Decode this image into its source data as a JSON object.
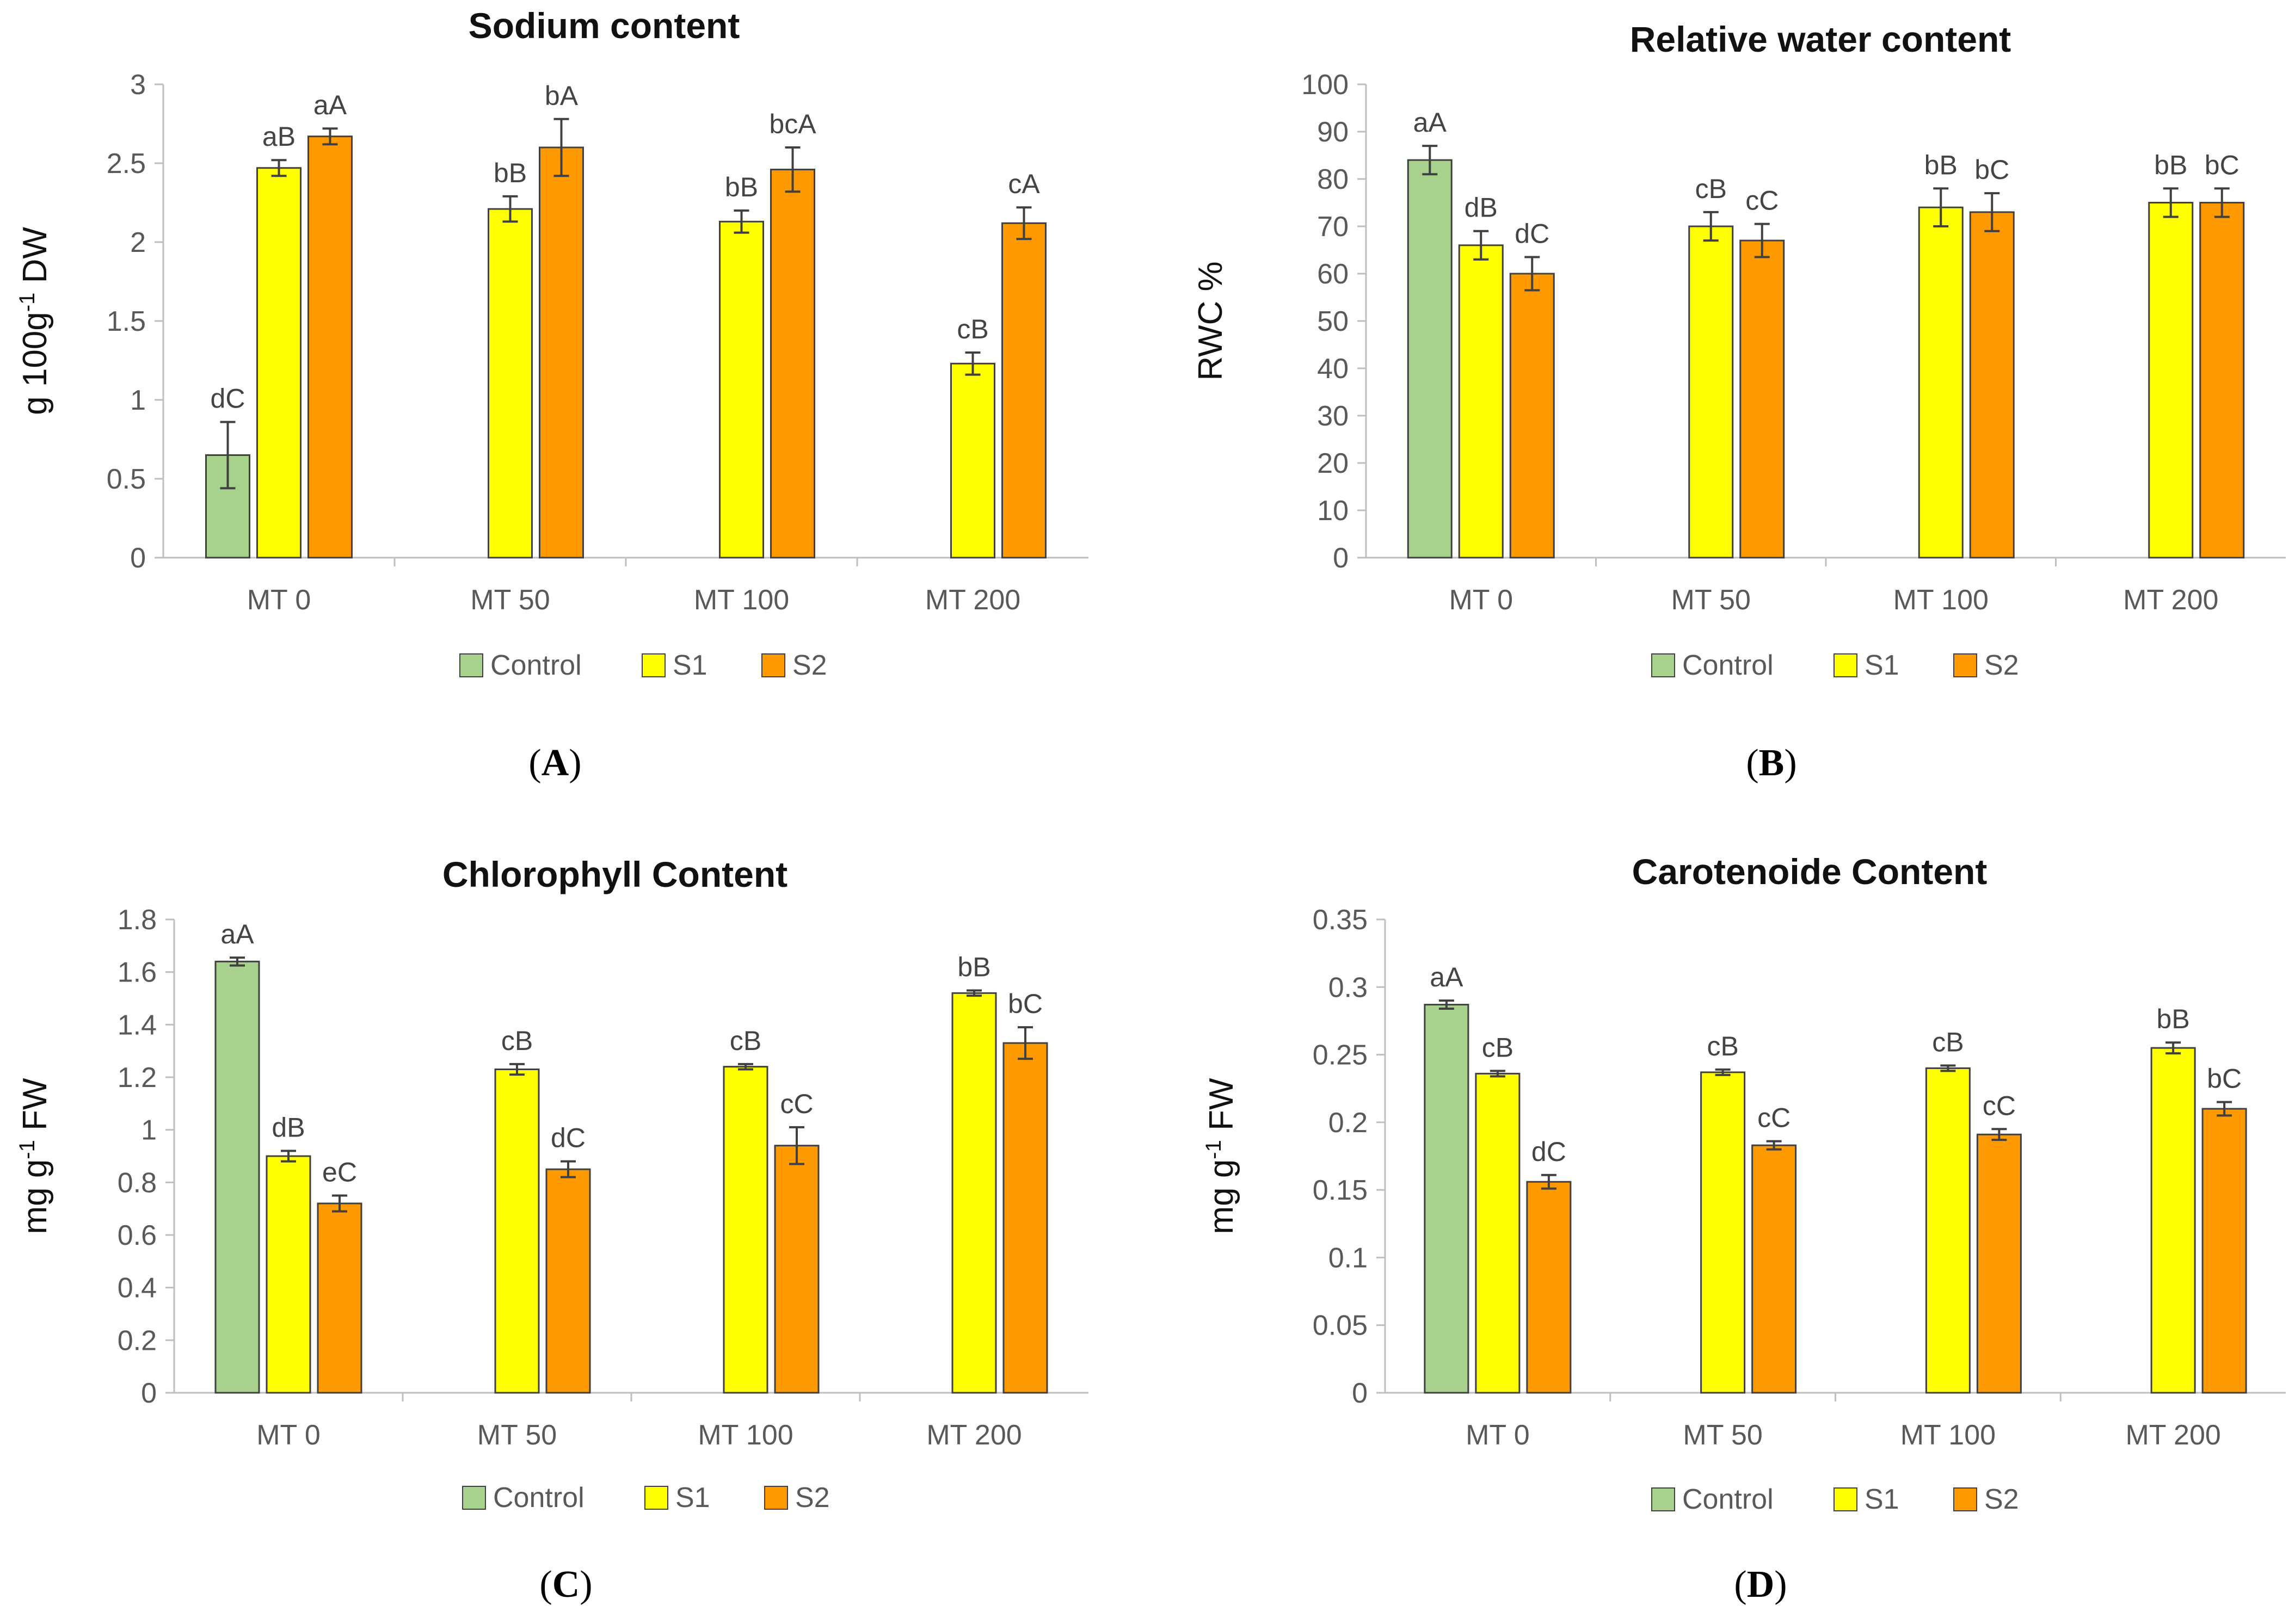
{
  "chart_data": [
    {
      "panel": "A",
      "type": "bar",
      "title": "Sodium content",
      "ylabel_main": "g 100g",
      "ylabel_sup": "-1",
      "ylabel_end": " DW",
      "ylim": [
        0,
        3
      ],
      "yticks": [
        0,
        0.5,
        1,
        1.5,
        2,
        2.5,
        3
      ],
      "ytick_labels": [
        "0",
        "0.5",
        "1",
        "1.5",
        "2",
        "2.5",
        "3"
      ],
      "categories": [
        "MT 0",
        "MT 50",
        "MT 100",
        "MT 200"
      ],
      "series": [
        {
          "name": "Control",
          "color": "#a9d18e",
          "values": [
            0.65,
            null,
            null,
            null
          ],
          "errors": [
            0.21,
            null,
            null,
            null
          ],
          "labels": [
            "dC",
            null,
            null,
            null
          ]
        },
        {
          "name": "S1",
          "color": "#ffff00",
          "values": [
            2.47,
            2.21,
            2.13,
            1.23
          ],
          "errors": [
            0.05,
            0.08,
            0.07,
            0.07
          ],
          "labels": [
            "aB",
            "bB",
            "bB",
            "cB"
          ]
        },
        {
          "name": "S2",
          "color": "#ff9900",
          "values": [
            2.67,
            2.6,
            2.46,
            2.12
          ],
          "errors": [
            0.05,
            0.18,
            0.14,
            0.1
          ],
          "labels": [
            "aA",
            "bA",
            "bcA",
            "cA"
          ]
        }
      ],
      "legend": [
        "Control",
        "S1",
        "S2"
      ],
      "legend_position": "bottom"
    },
    {
      "panel": "B",
      "type": "bar",
      "title": "Relative water content",
      "ylabel_main": "RWC %",
      "ylabel_sup": "",
      "ylabel_end": "",
      "ylim": [
        0,
        100
      ],
      "yticks": [
        0,
        10,
        20,
        30,
        40,
        50,
        60,
        70,
        80,
        90,
        100
      ],
      "ytick_labels": [
        "0",
        "10",
        "20",
        "30",
        "40",
        "50",
        "60",
        "70",
        "80",
        "90",
        "100"
      ],
      "categories": [
        "MT 0",
        "MT 50",
        "MT 100",
        "MT 200"
      ],
      "series": [
        {
          "name": "Control",
          "color": "#a9d18e",
          "values": [
            84,
            null,
            null,
            null
          ],
          "errors": [
            3,
            null,
            null,
            null
          ],
          "labels": [
            "aA",
            null,
            null,
            null
          ]
        },
        {
          "name": "S1",
          "color": "#ffff00",
          "values": [
            66,
            70,
            74,
            75
          ],
          "errors": [
            3,
            3,
            4,
            3
          ],
          "labels": [
            "dB",
            "cB",
            "bB",
            "bB"
          ]
        },
        {
          "name": "S2",
          "color": "#ff9900",
          "values": [
            60,
            67,
            73,
            75
          ],
          "errors": [
            3.5,
            3.5,
            4,
            3
          ],
          "labels": [
            "dC",
            "cC",
            "bC",
            "bC"
          ]
        }
      ],
      "legend": [
        "Control",
        "S1",
        "S2"
      ],
      "legend_position": "bottom"
    },
    {
      "panel": "C",
      "type": "bar",
      "title": "Chlorophyll Content",
      "ylabel_main": "mg g",
      "ylabel_sup": "-1",
      "ylabel_end": " FW",
      "ylim": [
        0,
        1.8
      ],
      "yticks": [
        0,
        0.2,
        0.4,
        0.6,
        0.8,
        1,
        1.2,
        1.4,
        1.6,
        1.8
      ],
      "ytick_labels": [
        "0",
        "0.2",
        "0.4",
        "0.6",
        "0.8",
        "1",
        "1.2",
        "1.4",
        "1.6",
        "1.8"
      ],
      "categories": [
        "MT 0",
        "MT 50",
        "MT 100",
        "MT 200"
      ],
      "series": [
        {
          "name": "Control",
          "color": "#a9d18e",
          "values": [
            1.64,
            null,
            null,
            null
          ],
          "errors": [
            0.015,
            null,
            null,
            null
          ],
          "labels": [
            "aA",
            null,
            null,
            null
          ]
        },
        {
          "name": "S1",
          "color": "#ffff00",
          "values": [
            0.9,
            1.23,
            1.24,
            1.52
          ],
          "errors": [
            0.02,
            0.02,
            0.01,
            0.01
          ],
          "labels": [
            "dB",
            "cB",
            "cB",
            "bB"
          ]
        },
        {
          "name": "S2",
          "color": "#ff9900",
          "values": [
            0.72,
            0.85,
            0.94,
            1.33
          ],
          "errors": [
            0.03,
            0.03,
            0.07,
            0.06
          ],
          "labels": [
            "eC",
            "dC",
            "cC",
            "bC"
          ]
        }
      ],
      "legend": [
        "Control",
        "S1",
        "S2"
      ],
      "legend_position": "bottom"
    },
    {
      "panel": "D",
      "type": "bar",
      "title": "Carotenoide Content",
      "ylabel_main": "mg g",
      "ylabel_sup": "-1",
      "ylabel_end": " FW",
      "ylim": [
        0,
        0.35
      ],
      "yticks": [
        0,
        0.05,
        0.1,
        0.15,
        0.2,
        0.25,
        0.3,
        0.35
      ],
      "ytick_labels": [
        "0",
        "0.05",
        "0.1",
        "0.15",
        "0.2",
        "0.25",
        "0.3",
        "0.35"
      ],
      "categories": [
        "MT 0",
        "MT 50",
        "MT 100",
        "MT 200"
      ],
      "series": [
        {
          "name": "Control",
          "color": "#a9d18e",
          "values": [
            0.287,
            null,
            null,
            null
          ],
          "errors": [
            0.003,
            null,
            null,
            null
          ],
          "labels": [
            "aA",
            null,
            null,
            null
          ]
        },
        {
          "name": "S1",
          "color": "#ffff00",
          "values": [
            0.236,
            0.237,
            0.24,
            0.255
          ],
          "errors": [
            0.002,
            0.002,
            0.002,
            0.004
          ],
          "labels": [
            "cB",
            "cB",
            "cB",
            "bB"
          ]
        },
        {
          "name": "S2",
          "color": "#ff9900",
          "values": [
            0.156,
            0.183,
            0.191,
            0.21
          ],
          "errors": [
            0.005,
            0.003,
            0.004,
            0.005
          ],
          "labels": [
            "dC",
            "cC",
            "cC",
            "bC"
          ]
        }
      ],
      "legend": [
        "Control",
        "S1",
        "S2"
      ],
      "legend_position": "bottom"
    }
  ]
}
